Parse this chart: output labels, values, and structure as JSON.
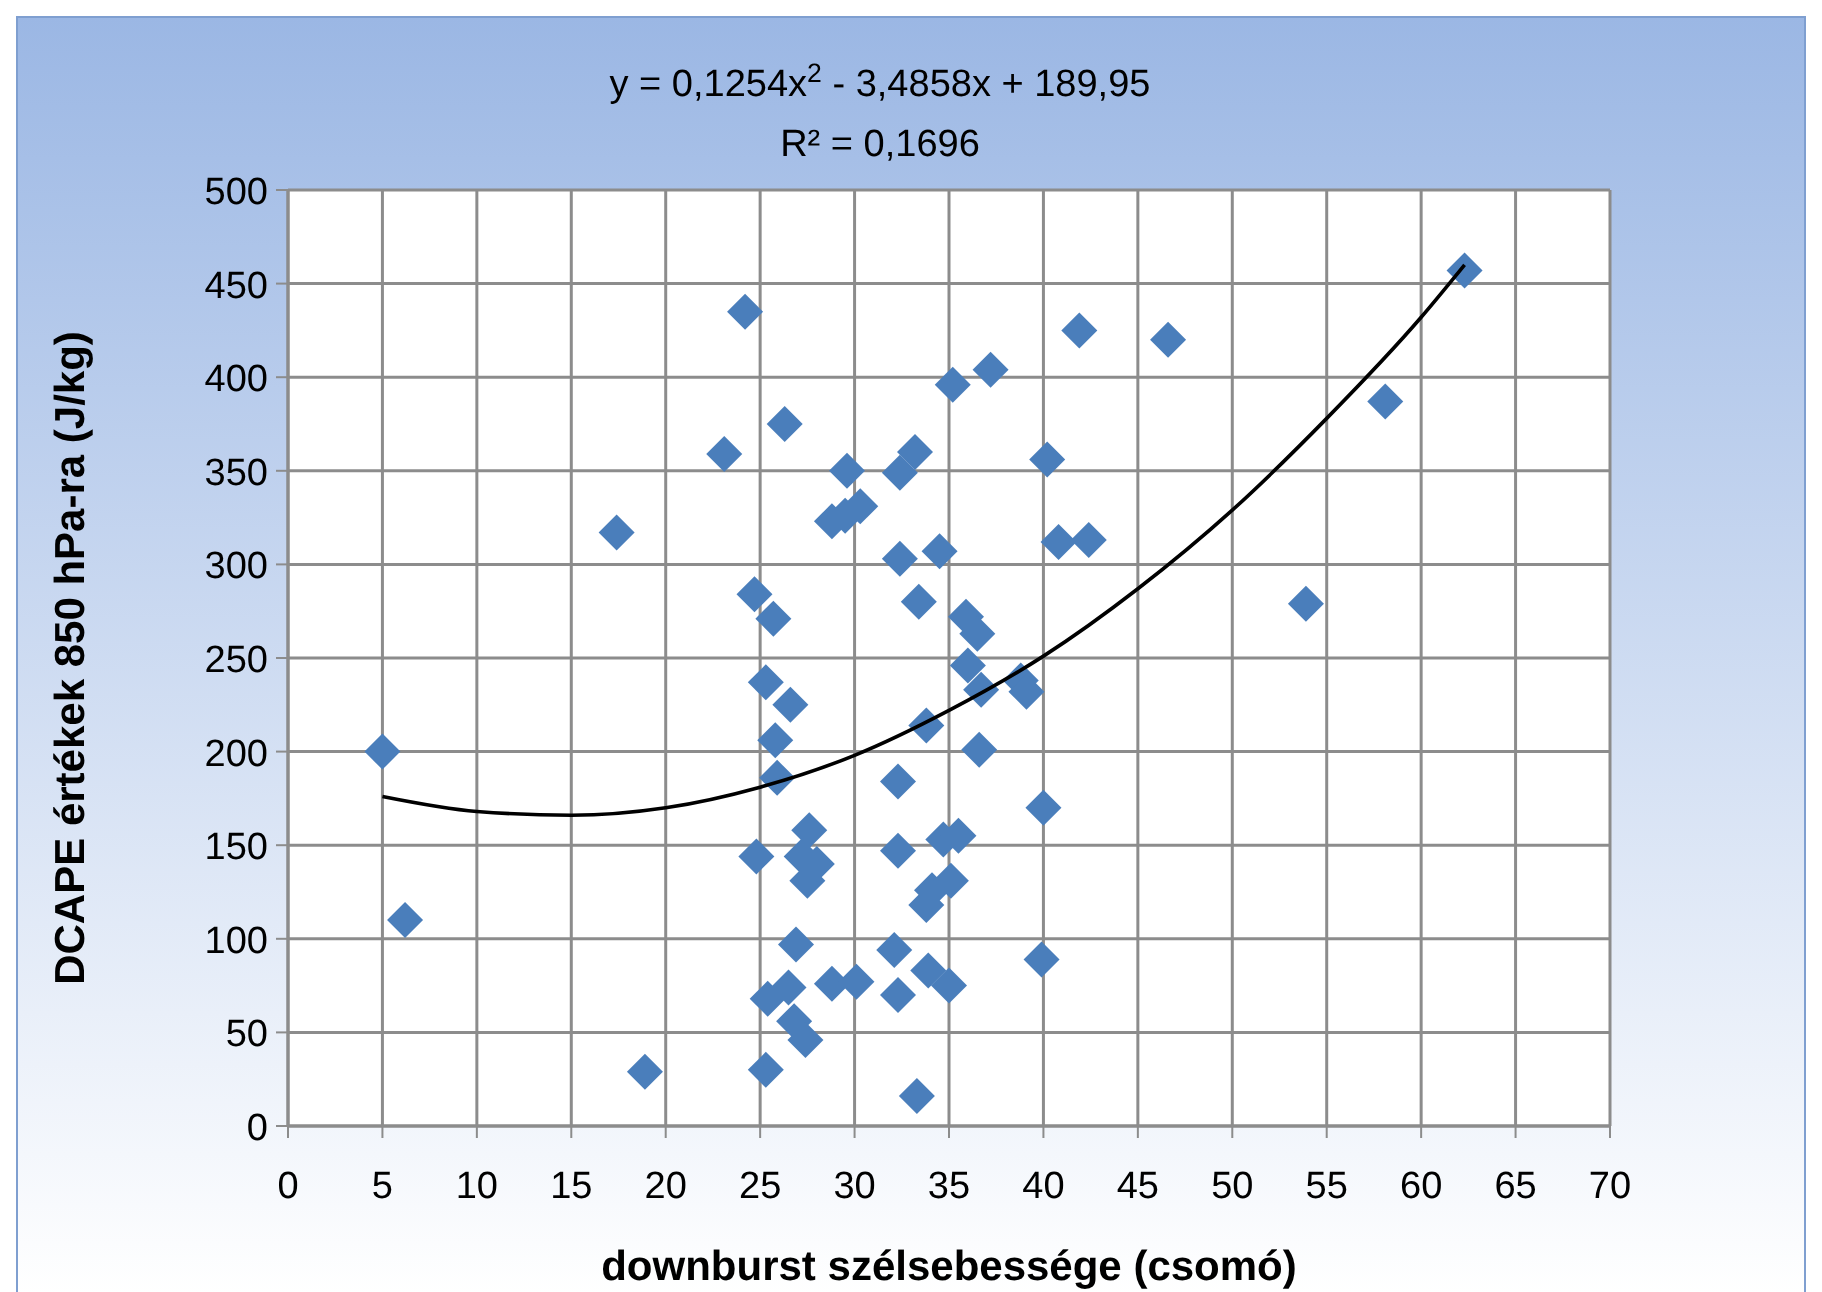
{
  "chart_data": {
    "type": "scatter",
    "xlabel": "downburst szélsebessége (csomó)",
    "ylabel": "DCAPE értékek 850 hPa-ra (J/kg)",
    "annotations": [
      "y = 0,1254x$^{2}$ - 3,4858x + 189,95",
      "R² = 0,1696"
    ],
    "xlim": [
      0,
      70
    ],
    "xticks": [
      0,
      5,
      10,
      15,
      20,
      25,
      30,
      35,
      40,
      45,
      50,
      55,
      60,
      65,
      70
    ],
    "ylim": [
      0,
      500
    ],
    "yticks": [
      0,
      50,
      100,
      150,
      200,
      250,
      300,
      350,
      400,
      450,
      500
    ],
    "grid": true,
    "series": [
      {
        "marker": "diamond",
        "color": "#4a7ebb",
        "x": [
          5,
          6.2,
          17.4,
          18.9,
          23.1,
          24.2,
          24.7,
          24.8,
          25.3,
          25.4,
          25.3,
          25.7,
          25.8,
          25.9,
          26.3,
          26.6,
          26.5,
          26.9,
          26.8,
          27.4,
          27.2,
          27.5,
          27.6,
          28,
          28.8,
          28.8,
          29.5,
          30.3,
          29.6,
          30.1,
          32.4,
          32.3,
          32.4,
          33.2,
          32.3,
          32.1,
          32.3,
          33.3,
          33.4,
          33.8,
          33.8,
          34.1,
          33.9,
          34.5,
          34.7,
          35.1,
          35,
          35.2,
          35.5,
          35.9,
          36,
          36.5,
          36.7,
          36.6,
          37.2,
          38.8,
          39.1,
          39.9,
          40,
          40.2,
          40.8,
          41.9,
          42.4,
          46.6,
          53.9,
          58.1,
          62.3
        ],
        "values": [
          200,
          110,
          317,
          29,
          359,
          435,
          284,
          144,
          30,
          68,
          237,
          271,
          206,
          186,
          375,
          225,
          74,
          97,
          56,
          46,
          144,
          131,
          158,
          140,
          76,
          323,
          326,
          331,
          350,
          77,
          303,
          184,
          349,
          360,
          147,
          94,
          70,
          16,
          280,
          214,
          118,
          126,
          83,
          307,
          153,
          131,
          75,
          396,
          155,
          272,
          246,
          263,
          233,
          201,
          404,
          238,
          232,
          89,
          170,
          356,
          312,
          425,
          313,
          420,
          279,
          387,
          457
        ]
      },
      {
        "type": "line",
        "marker": "none",
        "line_style": "solid",
        "color": "#000000",
        "x": [
          5,
          10,
          15,
          20,
          25,
          30,
          35,
          40,
          45,
          50,
          55,
          60,
          62.3
        ],
        "values": [
          176,
          168,
          166,
          170,
          181,
          198,
          222,
          251,
          287,
          329,
          378,
          432,
          460
        ]
      }
    ]
  }
}
